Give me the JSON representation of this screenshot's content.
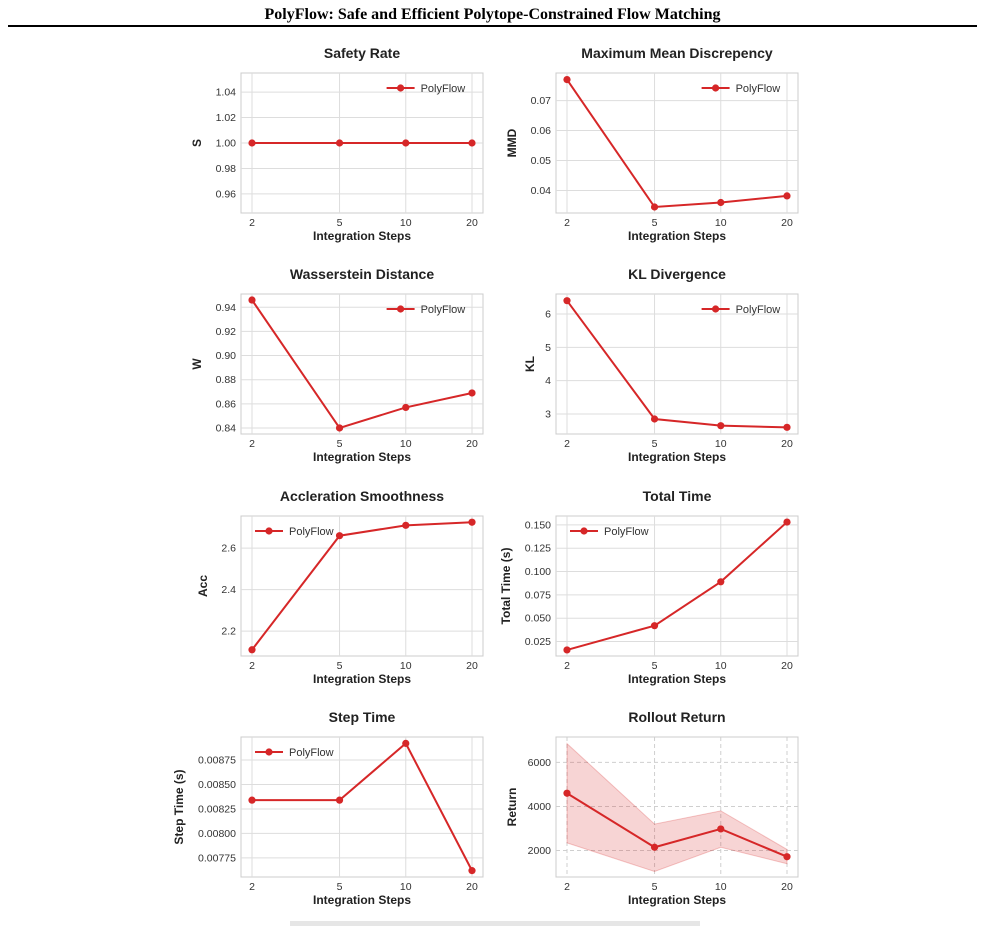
{
  "page": {
    "header_title": "PolyFlow: Safe and Efficient Polytope-Constrained Flow Matching"
  },
  "chart_data": [
    {
      "type": "line",
      "title": "Safety Rate",
      "xlabel": "Integration Steps",
      "ylabel": "S",
      "x": [
        2,
        5,
        10,
        20
      ],
      "x_scale": "log",
      "series": [
        {
          "name": "PolyFlow",
          "values": [
            1.0,
            1.0,
            1.0,
            1.0
          ]
        }
      ],
      "yticks": [
        "0.96",
        "0.98",
        "1.00",
        "1.02",
        "1.04"
      ],
      "ylim": [
        0.945,
        1.055
      ],
      "grid": true,
      "legend": "upper right"
    },
    {
      "type": "line",
      "title": "Maximum Mean Discrepency",
      "xlabel": "Integration Steps",
      "ylabel": "MMD",
      "x": [
        2,
        5,
        10,
        20
      ],
      "x_scale": "log",
      "series": [
        {
          "name": "PolyFlow",
          "values": [
            0.077,
            0.0345,
            0.036,
            0.0382
          ]
        }
      ],
      "yticks": [
        "0.04",
        "0.05",
        "0.06",
        "0.07"
      ],
      "ylim": [
        0.0325,
        0.0792
      ],
      "grid": true,
      "legend": "upper right"
    },
    {
      "type": "line",
      "title": "Wasserstein Distance",
      "xlabel": "Integration Steps",
      "ylabel": "W",
      "x": [
        2,
        5,
        10,
        20
      ],
      "x_scale": "log",
      "series": [
        {
          "name": "PolyFlow",
          "values": [
            0.946,
            0.84,
            0.857,
            0.869
          ]
        }
      ],
      "yticks": [
        "0.84",
        "0.86",
        "0.88",
        "0.90",
        "0.92",
        "0.94"
      ],
      "ylim": [
        0.835,
        0.951
      ],
      "grid": true,
      "legend": "upper right"
    },
    {
      "type": "line",
      "title": "KL Divergence",
      "xlabel": "Integration Steps",
      "ylabel": "KL",
      "x": [
        2,
        5,
        10,
        20
      ],
      "x_scale": "log",
      "series": [
        {
          "name": "PolyFlow",
          "values": [
            6.4,
            2.85,
            2.65,
            2.6
          ]
        }
      ],
      "yticks": [
        "3",
        "4",
        "5",
        "6"
      ],
      "ylim": [
        2.4,
        6.6
      ],
      "grid": true,
      "legend": "upper right"
    },
    {
      "type": "line",
      "title": "Accleration Smoothness",
      "xlabel": "Integration Steps",
      "ylabel": "Acc",
      "x": [
        2,
        5,
        10,
        20
      ],
      "x_scale": "log",
      "series": [
        {
          "name": "PolyFlow",
          "values": [
            2.11,
            2.66,
            2.71,
            2.725
          ]
        }
      ],
      "yticks": [
        "2.2",
        "2.4",
        "2.6"
      ],
      "ylim": [
        2.08,
        2.755
      ],
      "grid": true,
      "legend": "upper left"
    },
    {
      "type": "line",
      "title": "Total Time",
      "xlabel": "Integration Steps",
      "ylabel": "Total Time (s)",
      "x": [
        2,
        5,
        10,
        20
      ],
      "x_scale": "log",
      "series": [
        {
          "name": "PolyFlow",
          "values": [
            0.016,
            0.042,
            0.089,
            0.153
          ]
        }
      ],
      "yticks": [
        "0.025",
        "0.050",
        "0.075",
        "0.100",
        "0.125",
        "0.150"
      ],
      "ylim": [
        0.0095,
        0.1595
      ],
      "grid": true,
      "legend": "upper left"
    },
    {
      "type": "line",
      "title": "Step Time",
      "xlabel": "Integration Steps",
      "ylabel": "Step Time (s)",
      "x": [
        2,
        5,
        10,
        20
      ],
      "x_scale": "log",
      "series": [
        {
          "name": "PolyFlow",
          "values": [
            0.00834,
            0.00834,
            0.00892,
            0.00762
          ]
        }
      ],
      "yticks": [
        "0.00775",
        "0.00800",
        "0.00825",
        "0.00850",
        "0.00875"
      ],
      "ylim": [
        0.007555,
        0.008985
      ],
      "grid": true,
      "legend": "upper left"
    },
    {
      "type": "area",
      "title": "Rollout Return",
      "xlabel": "Integration Steps",
      "ylabel": "Return",
      "x": [
        2,
        5,
        10,
        20
      ],
      "x_scale": "log",
      "series": [
        {
          "values": [
            4600,
            2150,
            2980,
            1720
          ]
        }
      ],
      "band": {
        "lower": [
          2350,
          1050,
          2150,
          1400
        ],
        "upper": [
          6850,
          3200,
          3800,
          2050
        ]
      },
      "yticks": [
        "2000",
        "4000",
        "6000"
      ],
      "ylim": [
        800,
        7150
      ],
      "grid": true,
      "grid_style": "dashed"
    }
  ]
}
